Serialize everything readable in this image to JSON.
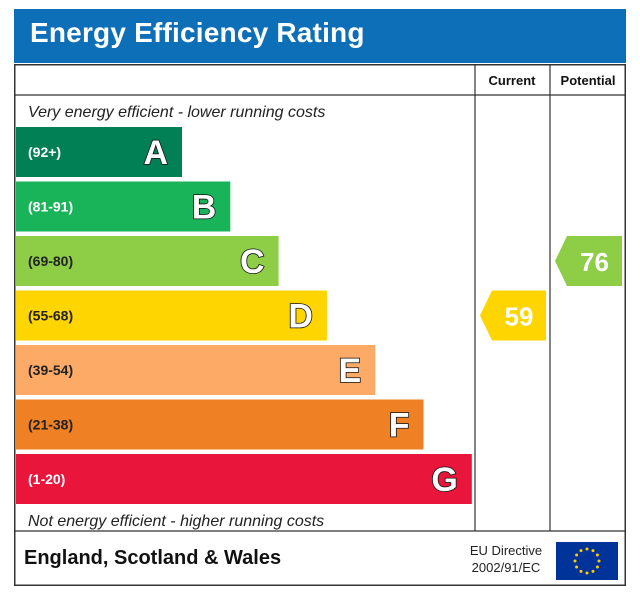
{
  "title": "Energy Efficiency Rating",
  "columns": {
    "current": "Current",
    "potential": "Potential"
  },
  "top_note": "Very energy efficient - lower running costs",
  "bottom_note": "Not energy efficient - higher running costs",
  "footer": {
    "region": "England, Scotland & Wales",
    "directive_line1": "EU Directive",
    "directive_line2": "2002/91/EC"
  },
  "chart_data": {
    "type": "bar",
    "title": "Energy Efficiency Rating",
    "categories": [
      "A",
      "B",
      "C",
      "D",
      "E",
      "F",
      "G"
    ],
    "ranges": [
      "(92+)",
      "(81-91)",
      "(69-80)",
      "(55-68)",
      "(39-54)",
      "(21-38)",
      "(1-20)"
    ],
    "colors": [
      "#008054",
      "#19b459",
      "#8dce46",
      "#ffd500",
      "#fcaa65",
      "#ef8023",
      "#e9153b"
    ],
    "current": {
      "value": 59,
      "band": "D",
      "color": "#ffd500"
    },
    "potential": {
      "value": 76,
      "band": "C",
      "color": "#8dce46"
    }
  }
}
